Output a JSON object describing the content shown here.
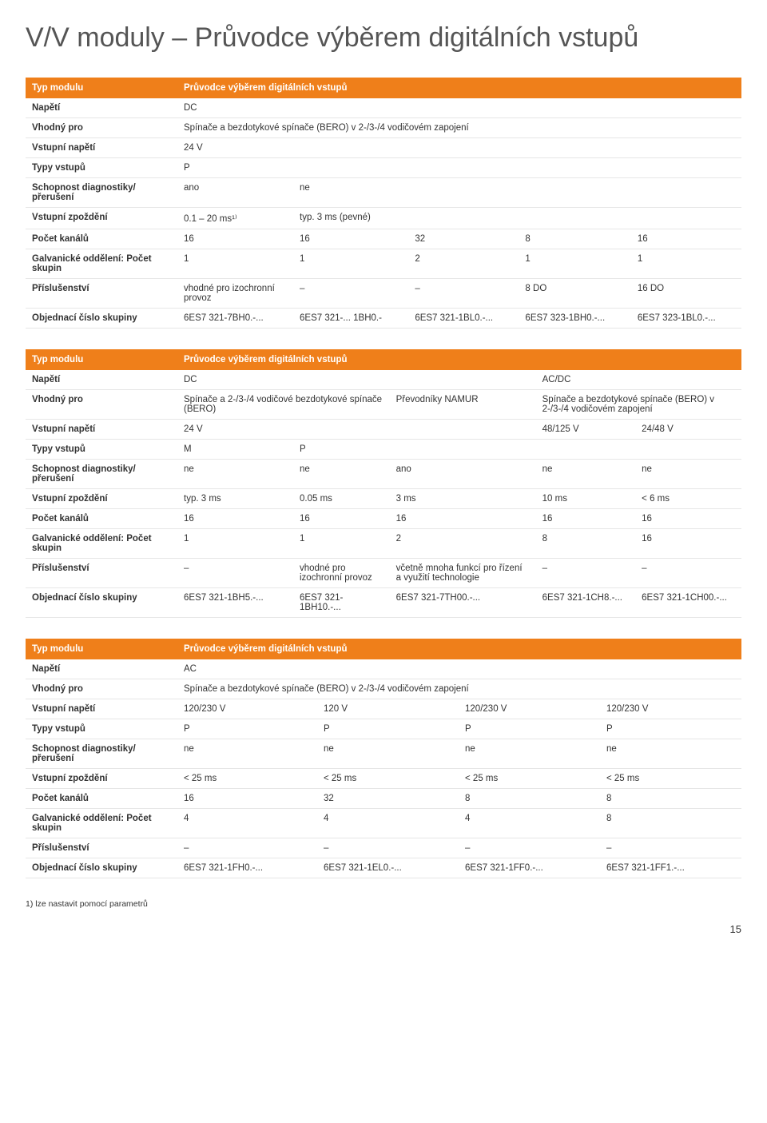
{
  "page_title": "V/V moduly – Průvodce výběrem digitálních vstupů",
  "footnote": "1) lze nastavit pomocí parametrů",
  "page_number": "15",
  "colors": {
    "header_bg": "#ef7f1a",
    "header_fg": "#ffffff",
    "row_border": "#e6e6e6",
    "text": "#333333",
    "title": "#555555",
    "background": "#ffffff"
  },
  "tables": {
    "t1": {
      "header": {
        "label": "Typ modulu",
        "value": "Průvodce výběrem digitálních vstupů"
      },
      "rows": [
        {
          "label": "Napětí",
          "c": [
            "DC",
            "",
            "",
            "",
            ""
          ]
        },
        {
          "label": "Vhodný pro",
          "c": [
            "Spínače a bezdotykové spínače (BERO) v 2-/3-/4 vodičovém zapojení",
            "",
            "",
            "",
            ""
          ]
        },
        {
          "label": "Vstupní napětí",
          "c": [
            "24 V",
            "",
            "",
            "",
            ""
          ]
        },
        {
          "label": "Typy vstupů",
          "c": [
            "P",
            "",
            "",
            "",
            ""
          ]
        },
        {
          "label": "Schopnost diagnostiky/ přerušení",
          "c": [
            "ano",
            "ne",
            "",
            "",
            ""
          ]
        },
        {
          "label": "Vstupní zpoždění",
          "c": [
            "0.1 – 20 ms¹⁾",
            "typ. 3 ms (pevné)",
            "",
            "",
            ""
          ]
        },
        {
          "label": "Počet kanálů",
          "c": [
            "16",
            "16",
            "32",
            "8",
            "16"
          ]
        },
        {
          "label": "Galvanické oddělení: Počet skupin",
          "c": [
            "1",
            "1",
            "2",
            "1",
            "1"
          ]
        },
        {
          "label": "Příslušenství",
          "c": [
            "vhodné pro izochronní provoz",
            "–",
            "–",
            "8 DO",
            "16 DO"
          ]
        },
        {
          "label": "Objednací číslo skupiny",
          "c": [
            "6ES7 321-7BH0.-...",
            "6ES7 321-... 1BH0.-",
            "6ES7 321-1BL0.-...",
            "6ES7 323-1BH0.-...",
            "6ES7 323-1BL0.-..."
          ]
        }
      ]
    },
    "t2": {
      "header": {
        "label": "Typ modulu",
        "value": "Průvodce výběrem digitálních vstupů"
      },
      "rows": [
        {
          "label": "Napětí",
          "c": [
            "DC",
            "",
            "",
            "AC/DC",
            ""
          ]
        },
        {
          "label": "Vhodný pro",
          "c": [
            "Spínače a 2-/3-/4 vodičové bezdotykové spínače (BERO)",
            "",
            "Převodníky NAMUR",
            "Spínače a bezdotykové spínače (BERO) v 2-/3-/4 vodičovém zapojení",
            ""
          ]
        },
        {
          "label": "Vstupní napětí",
          "c": [
            "24 V",
            "",
            "",
            "48/125 V",
            "24/48 V"
          ]
        },
        {
          "label": "Typy vstupů",
          "c": [
            "M",
            "P",
            "",
            "",
            ""
          ]
        },
        {
          "label": "Schopnost diagnostiky/ přerušení",
          "c": [
            "ne",
            "ne",
            "ano",
            "ne",
            "ne"
          ]
        },
        {
          "label": "Vstupní zpoždění",
          "c": [
            "typ. 3 ms",
            "0.05 ms",
            "3 ms",
            "10 ms",
            "< 6 ms"
          ]
        },
        {
          "label": "Počet kanálů",
          "c": [
            "16",
            "16",
            "16",
            "16",
            "16"
          ]
        },
        {
          "label": "Galvanické oddělení: Počet skupin",
          "c": [
            "1",
            "1",
            "2",
            "8",
            "16"
          ]
        },
        {
          "label": "Příslušenství",
          "c": [
            "–",
            "vhodné pro izochronní provoz",
            "včetně mnoha funkcí pro řízení a využití technologie",
            "–",
            "–"
          ]
        },
        {
          "label": "Objednací číslo skupiny",
          "c": [
            "6ES7 321-1BH5.-...",
            "6ES7 321-1BH10.-...",
            "6ES7 321-7TH00.-...",
            "6ES7 321-1CH8.-...",
            "6ES7 321-1CH00.-..."
          ]
        }
      ]
    },
    "t3": {
      "header": {
        "label": "Typ modulu",
        "value": "Průvodce výběrem digitálních vstupů"
      },
      "rows": [
        {
          "label": "Napětí",
          "c": [
            "AC",
            "",
            "",
            ""
          ]
        },
        {
          "label": "Vhodný pro",
          "c": [
            "Spínače a bezdotykové spínače (BERO) v 2-/3-/4 vodičovém zapojení",
            "",
            "",
            ""
          ]
        },
        {
          "label": "Vstupní napětí",
          "c": [
            "120/230 V",
            "120 V",
            "120/230 V",
            "120/230 V"
          ]
        },
        {
          "label": "Typy vstupů",
          "c": [
            "P",
            "P",
            "P",
            "P"
          ]
        },
        {
          "label": "Schopnost diagnostiky/ přerušení",
          "c": [
            "ne",
            "ne",
            "ne",
            "ne"
          ]
        },
        {
          "label": "Vstupní zpoždění",
          "c": [
            "< 25 ms",
            "< 25 ms",
            "< 25 ms",
            "< 25 ms"
          ]
        },
        {
          "label": "Počet kanálů",
          "c": [
            "16",
            "32",
            "8",
            "8"
          ]
        },
        {
          "label": "Galvanické oddělení: Počet skupin",
          "c": [
            "4",
            "4",
            "4",
            "8"
          ]
        },
        {
          "label": "Příslušenství",
          "c": [
            "–",
            "–",
            "–",
            "–"
          ]
        },
        {
          "label": "Objednací číslo skupiny",
          "c": [
            "6ES7 321-1FH0.-...",
            "6ES7 321-1EL0.-...",
            "6ES7 321-1FF0.-...",
            "6ES7 321-1FF1.-..."
          ]
        }
      ]
    }
  }
}
